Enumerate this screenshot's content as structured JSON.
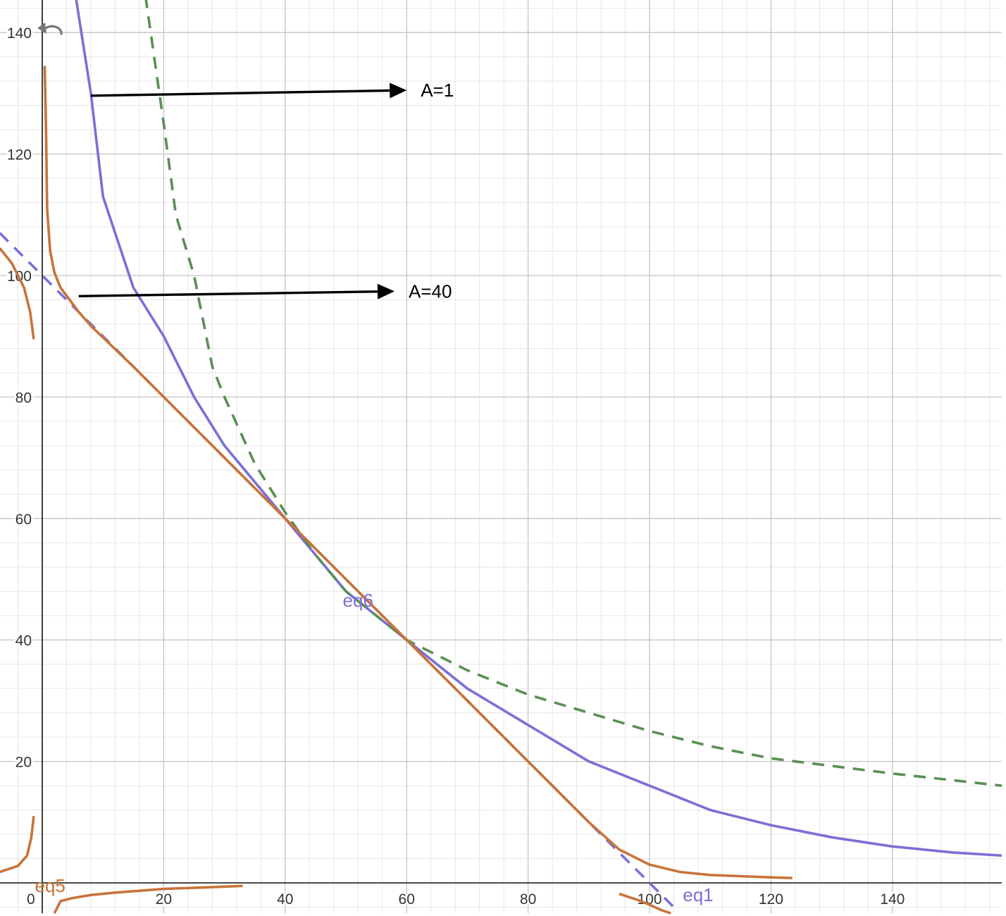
{
  "chart_data": {
    "type": "line",
    "xlim": [
      -7,
      158
    ],
    "ylim": [
      -5,
      146
    ],
    "x_ticks": [
      0,
      20,
      40,
      60,
      80,
      100,
      120,
      140
    ],
    "y_ticks": [
      20,
      40,
      60,
      80,
      100,
      120,
      140
    ],
    "x_tick_labels": [
      "0",
      "20",
      "40",
      "60",
      "80",
      "100",
      "120",
      "140"
    ],
    "y_tick_labels": [
      "20",
      "40",
      "60",
      "80",
      "100",
      "120",
      "140"
    ],
    "grid": true,
    "series": [
      {
        "name": "eq1",
        "style": "dashed",
        "color": "#7b6fd6",
        "x": [
          -7,
          0,
          20,
          40,
          60,
          80,
          100,
          104
        ],
        "y": [
          107,
          100,
          80,
          60,
          40,
          20,
          0,
          -4
        ]
      },
      {
        "name": "eq6",
        "style": "solid",
        "color": "#7b6fd6",
        "x": [
          5.5,
          8,
          10,
          15,
          20,
          25,
          30,
          40,
          50,
          60,
          70,
          80,
          90,
          100,
          110,
          120,
          130,
          140,
          150,
          158
        ],
        "y": [
          146,
          130,
          113,
          98,
          90,
          80,
          72,
          60,
          48,
          40,
          32,
          26,
          20,
          16,
          12,
          9.5,
          7.5,
          6,
          5,
          4.5
        ]
      },
      {
        "name": "",
        "style": "dashed",
        "color": "#5a8f54",
        "x": [
          17,
          20,
          22,
          25,
          28,
          30,
          35,
          40,
          45,
          50,
          55,
          60,
          70,
          80,
          90,
          100,
          110,
          120,
          140,
          158
        ],
        "y": [
          146,
          125,
          110,
          100,
          85,
          80,
          69,
          61,
          54,
          48,
          44,
          40,
          35,
          31,
          28,
          25,
          22.5,
          20.5,
          18,
          16
        ]
      },
      {
        "name": "eq5",
        "style": "solid",
        "color": "#c8733a",
        "segments": [
          {
            "x": [
              0.4,
              0.6,
              0.8,
              1.3,
              2.0,
              3.0,
              4.5,
              6.0,
              8,
              10,
              15,
              20,
              30,
              40,
              50,
              60,
              70,
              80,
              85,
              90,
              95,
              100,
              105,
              110,
              115,
              120,
              123.5
            ],
            "y": [
              134.5,
              125,
              111,
              104,
              100.5,
              98,
              96,
              94,
              91.7,
              89.8,
              85,
              80,
              70,
              60,
              50,
              40,
              30,
              20,
              15,
              10,
              5.5,
              3,
              1.8,
              1.3,
              1.1,
              0.9,
              0.8
            ]
          },
          {
            "x": [
              -7,
              -5,
              -3,
              -2,
              -1.4
            ],
            "y": [
              104.5,
              102,
              98,
              94,
              89.5
            ]
          },
          {
            "x": [
              -7,
              -4,
              -2.5,
              -1.8,
              -1.4
            ],
            "y": [
              1.8,
              2.8,
              4.5,
              7.5,
              11
            ]
          },
          {
            "x": [
              2,
              3,
              5,
              8,
              12,
              20,
              33
            ],
            "y": [
              -5,
              -3,
              -2.5,
              -2,
              -1.6,
              -1.0,
              -0.5
            ]
          },
          {
            "x": [
              95,
              98,
              100,
              102,
              103.5
            ],
            "y": [
              -1.8,
              -2.8,
              -3.6,
              -4.5,
              -5
            ]
          }
        ]
      }
    ],
    "annotations": [
      {
        "text": "A=1",
        "arrow_from": [
          8,
          129.6
        ],
        "arrow_to": [
          60,
          130.5
        ]
      },
      {
        "text": "A=40",
        "arrow_from": [
          6,
          96.6
        ],
        "arrow_to": [
          58,
          97.4
        ]
      }
    ],
    "curve_labels": [
      {
        "text": "eq6",
        "at": [
          52,
          45.5
        ],
        "color": "#7b6fd6"
      },
      {
        "text": "eq1",
        "at": [
          108,
          -3
        ],
        "color": "#7b6fd6"
      },
      {
        "text": "eq5",
        "at": [
          1.3,
          -1.5
        ],
        "color": "#c8733a"
      }
    ]
  },
  "controls": {
    "reset_icon": "undo-arrow-icon",
    "reset_color": "#777777"
  }
}
